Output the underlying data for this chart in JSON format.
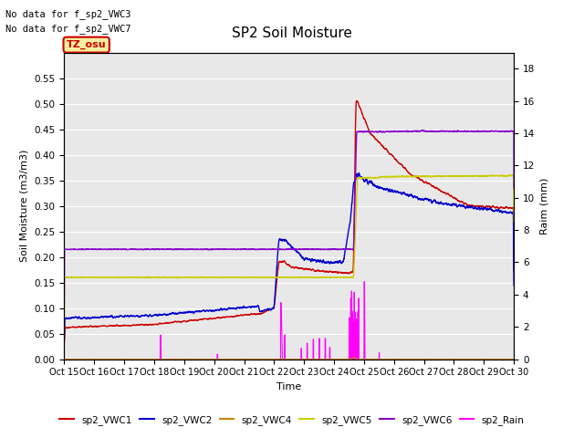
{
  "title": "SP2 Soil Moisture",
  "xlabel": "Time",
  "ylabel_left": "Soil Moisture (m3/m3)",
  "ylabel_right": "Raim (mm)",
  "annotation_lines": [
    "No data for f_sp2_VWC3",
    "No data for f_sp2_VWC7"
  ],
  "tz_label": "TZ_osu",
  "ylim_left": [
    0.0,
    0.6
  ],
  "ylim_right": [
    0.0,
    19.0
  ],
  "yticks_left": [
    0.0,
    0.05,
    0.1,
    0.15,
    0.2,
    0.25,
    0.3,
    0.35,
    0.4,
    0.45,
    0.5,
    0.55
  ],
  "yticks_right": [
    0,
    2,
    4,
    6,
    8,
    10,
    12,
    14,
    16,
    18
  ],
  "xtick_labels": [
    "Oct 15",
    "Oct 16",
    "Oct 17",
    "Oct 18",
    "Oct 19",
    "Oct 20",
    "Oct 21",
    "Oct 22",
    "Oct 23",
    "Oct 24",
    "Oct 25",
    "Oct 26",
    "Oct 27",
    "Oct 28",
    "Oct 29",
    "Oct 30"
  ],
  "colors": {
    "VWC1": "#cc0000",
    "VWC2": "#0000cc",
    "VWC4": "#cc8800",
    "VWC5": "#cccc00",
    "VWC6": "#8800cc",
    "Rain": "#ff00ff"
  },
  "legend_entries": [
    {
      "label": "sp2_VWC1",
      "color": "#cc0000"
    },
    {
      "label": "sp2_VWC2",
      "color": "#0000cc"
    },
    {
      "label": "sp2_VWC4",
      "color": "#cc8800"
    },
    {
      "label": "sp2_VWC5",
      "color": "#cccc00"
    },
    {
      "label": "sp2_VWC6",
      "color": "#8800cc"
    },
    {
      "label": "sp2_Rain",
      "color": "#ff00ff"
    }
  ],
  "background_color": "#e8e8e8",
  "grid_color": "#ffffff",
  "fig_background": "#ffffff"
}
